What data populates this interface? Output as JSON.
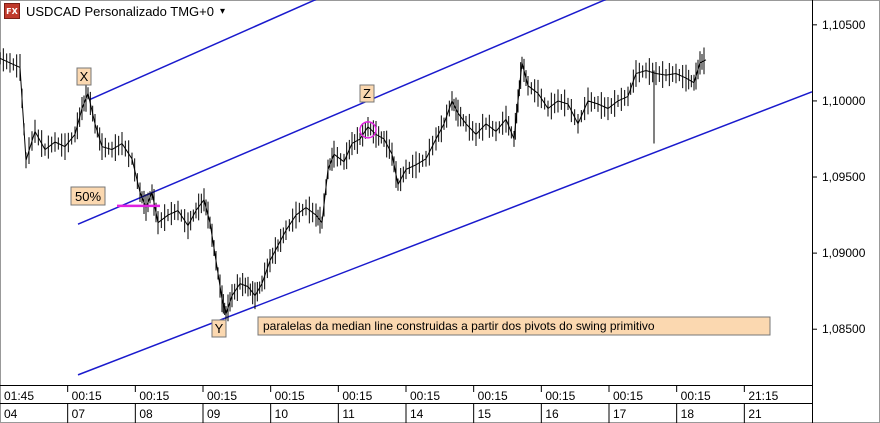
{
  "header": {
    "symbol_icon": "FX",
    "title": "USDCAD Personalizado TMG+0",
    "dropdown_icon": "caret-down-icon"
  },
  "colors": {
    "price": "#000000",
    "channel": "#1a1acd",
    "marker": "#e020e0",
    "label_bg": "#fbd8b0",
    "grid_border": "#000000"
  },
  "chart_data": {
    "type": "line",
    "y_ticks": [
      "1,10500",
      "1,10000",
      "1,09500",
      "1,09000",
      "1,08500"
    ],
    "y_tick_values": [
      1.105,
      1.1,
      1.095,
      1.09,
      1.085
    ],
    "ylim": [
      1.0814,
      1.1065
    ],
    "time_row": [
      "01:45",
      "00:15",
      "00:15",
      "00:15",
      "00:15",
      "00:15",
      "00:15",
      "00:15",
      "00:15",
      "00:15",
      "00:15",
      "21:15"
    ],
    "date_row": [
      "04",
      "07",
      "08",
      "09",
      "10",
      "11",
      "14",
      "15",
      "16",
      "17",
      "18",
      "21"
    ],
    "pivot_labels": [
      "X",
      "Y",
      "Z"
    ],
    "pct_label": "50%",
    "annotation": "paralelas da median line construidas a partir dos pivots do swing primitivo",
    "price_series": [
      {
        "x": 0,
        "y": 1.1028
      },
      {
        "x": 10,
        "y": 1.1025
      },
      {
        "x": 20,
        "y": 1.1022
      },
      {
        "x": 26,
        "y": 1.0961
      },
      {
        "x": 35,
        "y": 1.098
      },
      {
        "x": 45,
        "y": 1.0968
      },
      {
        "x": 55,
        "y": 1.0973
      },
      {
        "x": 65,
        "y": 1.097
      },
      {
        "x": 75,
        "y": 1.0978
      },
      {
        "x": 82,
        "y": 1.0995
      },
      {
        "x": 88,
        "y": 1.1005
      },
      {
        "x": 95,
        "y": 1.0985
      },
      {
        "x": 102,
        "y": 1.097
      },
      {
        "x": 112,
        "y": 1.0968
      },
      {
        "x": 122,
        "y": 1.0972
      },
      {
        "x": 132,
        "y": 1.0962
      },
      {
        "x": 140,
        "y": 1.094
      },
      {
        "x": 146,
        "y": 1.093
      },
      {
        "x": 152,
        "y": 1.094
      },
      {
        "x": 158,
        "y": 1.092
      },
      {
        "x": 168,
        "y": 1.0925
      },
      {
        "x": 178,
        "y": 1.0928
      },
      {
        "x": 188,
        "y": 1.0918
      },
      {
        "x": 196,
        "y": 1.0928
      },
      {
        "x": 204,
        "y": 1.0935
      },
      {
        "x": 210,
        "y": 1.092
      },
      {
        "x": 216,
        "y": 1.0895
      },
      {
        "x": 222,
        "y": 1.087
      },
      {
        "x": 226,
        "y": 1.086
      },
      {
        "x": 232,
        "y": 1.0872
      },
      {
        "x": 240,
        "y": 1.088
      },
      {
        "x": 248,
        "y": 1.0878
      },
      {
        "x": 255,
        "y": 1.0872
      },
      {
        "x": 262,
        "y": 1.088
      },
      {
        "x": 270,
        "y": 1.0895
      },
      {
        "x": 278,
        "y": 1.0905
      },
      {
        "x": 286,
        "y": 1.0915
      },
      {
        "x": 296,
        "y": 1.0925
      },
      {
        "x": 306,
        "y": 1.093
      },
      {
        "x": 316,
        "y": 1.0925
      },
      {
        "x": 322,
        "y": 1.092
      },
      {
        "x": 328,
        "y": 1.0955
      },
      {
        "x": 334,
        "y": 1.0965
      },
      {
        "x": 344,
        "y": 1.096
      },
      {
        "x": 352,
        "y": 1.0972
      },
      {
        "x": 360,
        "y": 1.0975
      },
      {
        "x": 368,
        "y": 1.0983
      },
      {
        "x": 376,
        "y": 1.0978
      },
      {
        "x": 384,
        "y": 1.0975
      },
      {
        "x": 392,
        "y": 1.0965
      },
      {
        "x": 398,
        "y": 1.0945
      },
      {
        "x": 406,
        "y": 1.0955
      },
      {
        "x": 416,
        "y": 1.0958
      },
      {
        "x": 426,
        "y": 1.0962
      },
      {
        "x": 436,
        "y": 1.0975
      },
      {
        "x": 444,
        "y": 1.0985
      },
      {
        "x": 452,
        "y": 1.1
      },
      {
        "x": 458,
        "y": 1.0992
      },
      {
        "x": 466,
        "y": 1.0985
      },
      {
        "x": 476,
        "y": 1.0978
      },
      {
        "x": 486,
        "y": 1.0985
      },
      {
        "x": 496,
        "y": 1.098
      },
      {
        "x": 506,
        "y": 1.0988
      },
      {
        "x": 514,
        "y": 1.0975
      },
      {
        "x": 518,
        "y": 1.1
      },
      {
        "x": 522,
        "y": 1.1025
      },
      {
        "x": 528,
        "y": 1.101
      },
      {
        "x": 538,
        "y": 1.1005
      },
      {
        "x": 548,
        "y": 1.0995
      },
      {
        "x": 558,
        "y": 1.1
      },
      {
        "x": 568,
        "y": 1.0998
      },
      {
        "x": 578,
        "y": 1.0985
      },
      {
        "x": 588,
        "y": 1.1
      },
      {
        "x": 598,
        "y": 1.0998
      },
      {
        "x": 608,
        "y": 1.0995
      },
      {
        "x": 618,
        "y": 1.1
      },
      {
        "x": 628,
        "y": 1.1003
      },
      {
        "x": 636,
        "y": 1.1018
      },
      {
        "x": 646,
        "y": 1.102
      },
      {
        "x": 656,
        "y": 1.1018
      },
      {
        "x": 666,
        "y": 1.1017
      },
      {
        "x": 676,
        "y": 1.1018
      },
      {
        "x": 686,
        "y": 1.1015
      },
      {
        "x": 694,
        "y": 1.1012
      },
      {
        "x": 700,
        "y": 1.1025
      },
      {
        "x": 706,
        "y": 1.1027
      }
    ],
    "spikes": [
      {
        "x": 654,
        "y_from": 1.102,
        "y_to": 1.0972
      }
    ],
    "channel_lines": [
      {
        "name": "upper",
        "p1": {
          "x": 90,
          "y": 1.1001
        },
        "p2": {
          "x": 355,
          "y": 1.1078
        }
      },
      {
        "name": "median",
        "p1": {
          "x": 78,
          "y": 1.0919
        },
        "p2": {
          "x": 700,
          "y": 1.1093
        }
      },
      {
        "name": "lower",
        "p1": {
          "x": 78,
          "y": 1.082
        },
        "p2": {
          "x": 812,
          "y": 1.1006
        }
      }
    ],
    "fifty_pct_line": {
      "x1": 117,
      "x2": 160,
      "y": 1.0931
    },
    "z_circle": {
      "x": 368,
      "y": 1.0981
    }
  }
}
